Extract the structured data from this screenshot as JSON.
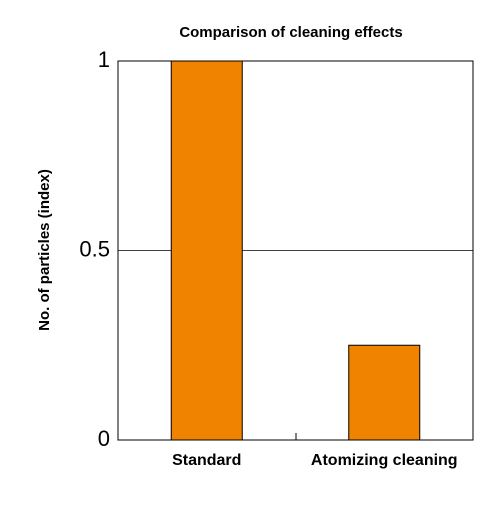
{
  "chart_data": {
    "type": "bar",
    "title": "Comparison of cleaning effects",
    "y_label": "No. of particles (index)",
    "categories": [
      "Standard",
      "Atomizing cleaning"
    ],
    "values": [
      1,
      0.25
    ],
    "color": "#f08300",
    "ylim": [
      0,
      1
    ],
    "yticks": [
      0,
      0.5,
      1
    ],
    "grid": true
  }
}
